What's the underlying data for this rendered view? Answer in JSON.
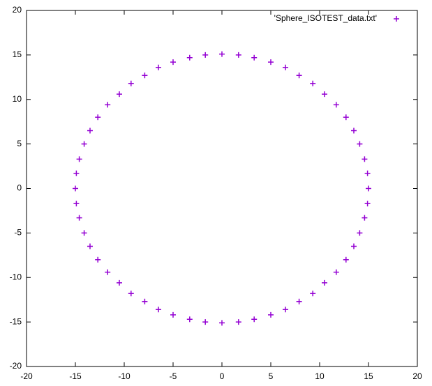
{
  "chart_data": {
    "type": "scatter",
    "series": [
      {
        "name": "'Sphere_ISOTEST_data.txt'",
        "color": "#9400d3",
        "x": [
          0,
          1.7,
          3.3,
          5,
          6.5,
          7.9,
          9.3,
          10.5,
          11.7,
          12.7,
          13.5,
          14.1,
          14.6,
          14.9,
          15,
          14.9,
          14.6,
          14.1,
          13.5,
          12.7,
          11.7,
          10.5,
          9.3,
          7.9,
          6.5,
          5,
          3.3,
          1.7,
          0,
          -1.7,
          -3.3,
          -5,
          -6.5,
          -7.9,
          -9.3,
          -10.5,
          -11.7,
          -12.7,
          -13.5,
          -14.1,
          -14.6,
          -14.9,
          -15,
          -14.9,
          -14.6,
          -14.1,
          -13.5,
          -12.7,
          -11.7,
          -10.5,
          -9.3,
          -7.9,
          -6.5,
          -5,
          -3.3,
          -1.7
        ],
        "values": [
          15.1,
          15,
          14.7,
          14.2,
          13.6,
          12.7,
          11.8,
          10.6,
          9.4,
          8,
          6.5,
          5,
          3.3,
          1.7,
          0,
          -1.7,
          -3.3,
          -5,
          -6.5,
          -8,
          -9.4,
          -10.6,
          -11.8,
          -12.7,
          -13.6,
          -14.2,
          -14.7,
          -15,
          -15.1,
          -15,
          -14.7,
          -14.2,
          -13.6,
          -12.7,
          -11.8,
          -10.6,
          -9.4,
          -8,
          -6.5,
          -5,
          -3.3,
          -1.7,
          0,
          1.7,
          3.3,
          5,
          6.5,
          8,
          9.4,
          10.6,
          11.8,
          12.7,
          13.6,
          14.2,
          14.7,
          15
        ]
      }
    ],
    "xlim": [
      -20,
      20
    ],
    "xticks": [
      -20,
      -15,
      -10,
      -5,
      0,
      5,
      10,
      15,
      20
    ],
    "ylim": [
      -20,
      20
    ],
    "yticks": [
      -20,
      -15,
      -10,
      -5,
      0,
      5,
      10,
      15,
      20
    ],
    "grid": false,
    "legend": "top right"
  }
}
